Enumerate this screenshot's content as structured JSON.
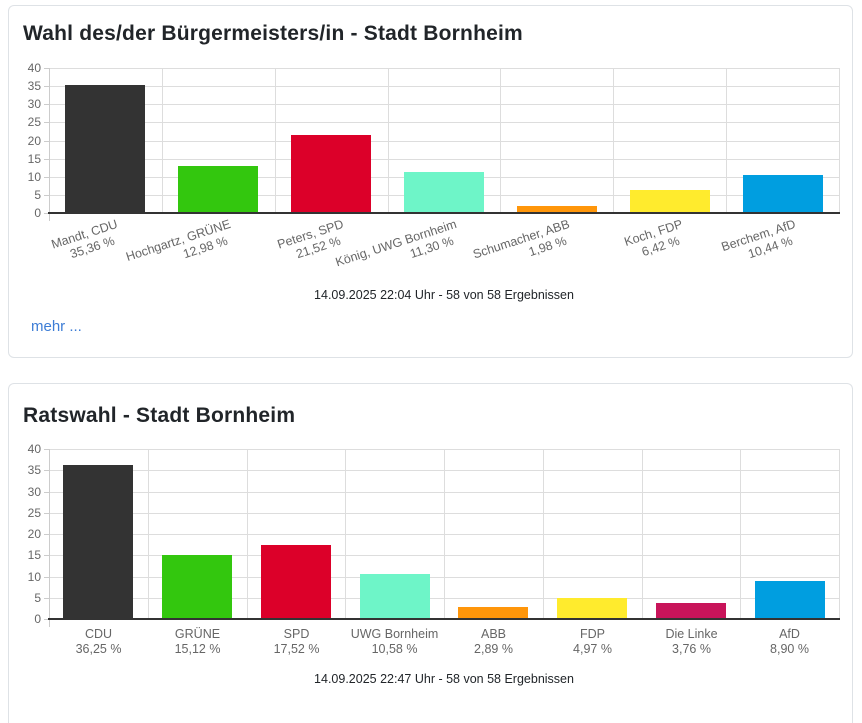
{
  "cards": [
    {
      "title": "Wahl des/der Bürgermeisters/in - Stadt Bornheim",
      "status": "14.09.2025 22:04 Uhr - 58 von 58 Ergebnissen",
      "more_label": "mehr ..."
    },
    {
      "title": "Ratswahl - Stadt Bornheim",
      "status": "14.09.2025 22:47 Uhr - 58 von 58 Ergebnissen"
    }
  ],
  "chart_data": [
    {
      "type": "bar",
      "title": "Wahl des/der Bürgermeisters/in - Stadt Bornheim",
      "categories": [
        "Mandt, CDU",
        "Hochgartz, GRÜNE",
        "Peters, SPD",
        "König, UWG Bornheim",
        "Schumacher, ABB",
        "Koch, FDP",
        "Berchem, AfD"
      ],
      "values": [
        35.36,
        12.98,
        21.52,
        11.3,
        1.98,
        6.42,
        10.44
      ],
      "value_labels": [
        "35,36 %",
        "12,98 %",
        "21,52 %",
        "11,30 %",
        "1,98 %",
        "6,42 %",
        "10,44 %"
      ],
      "bar_colors": [
        "#333333",
        "#33C70E",
        "#DC0029",
        "#6EF5C8",
        "#FF960A",
        "#FFEB2D",
        "#009EE0"
      ],
      "ylabel": "",
      "xlabel": "",
      "ylim": [
        0,
        40
      ],
      "ytick_step": 5,
      "ytick_labels": [
        "0",
        "5",
        "10",
        "15",
        "20",
        "25",
        "30",
        "35",
        "40"
      ],
      "grid": true,
      "legend": "none",
      "x_label_rotation_deg": -18
    },
    {
      "type": "bar",
      "title": "Ratswahl - Stadt Bornheim",
      "categories": [
        "CDU",
        "GRÜNE",
        "SPD",
        "UWG Bornheim",
        "ABB",
        "FDP",
        "Die Linke",
        "AfD"
      ],
      "values": [
        36.25,
        15.12,
        17.52,
        10.58,
        2.89,
        4.97,
        3.76,
        8.9
      ],
      "value_labels": [
        "36,25 %",
        "15,12 %",
        "17,52 %",
        "10,58 %",
        "2,89 %",
        "4,97 %",
        "3,76 %",
        "8,90 %"
      ],
      "bar_colors": [
        "#333333",
        "#33C70E",
        "#DC0029",
        "#6EF5C8",
        "#FF960A",
        "#FFEB2D",
        "#C8145A",
        "#009EE0"
      ],
      "ylabel": "",
      "xlabel": "",
      "ylim": [
        0,
        40
      ],
      "ytick_step": 5,
      "ytick_labels": [
        "0",
        "5",
        "10",
        "15",
        "20",
        "25",
        "30",
        "35",
        "40"
      ],
      "grid": true,
      "legend": "none",
      "x_label_rotation_deg": 0
    }
  ],
  "colors": {
    "card_border": "#dee2e6",
    "grid_line": "#dddddd",
    "axis_line": "#cccccc",
    "baseline": "#333333",
    "tick_label": "#666666",
    "title_text": "#212529",
    "link_blue": "#3d7dd6"
  }
}
